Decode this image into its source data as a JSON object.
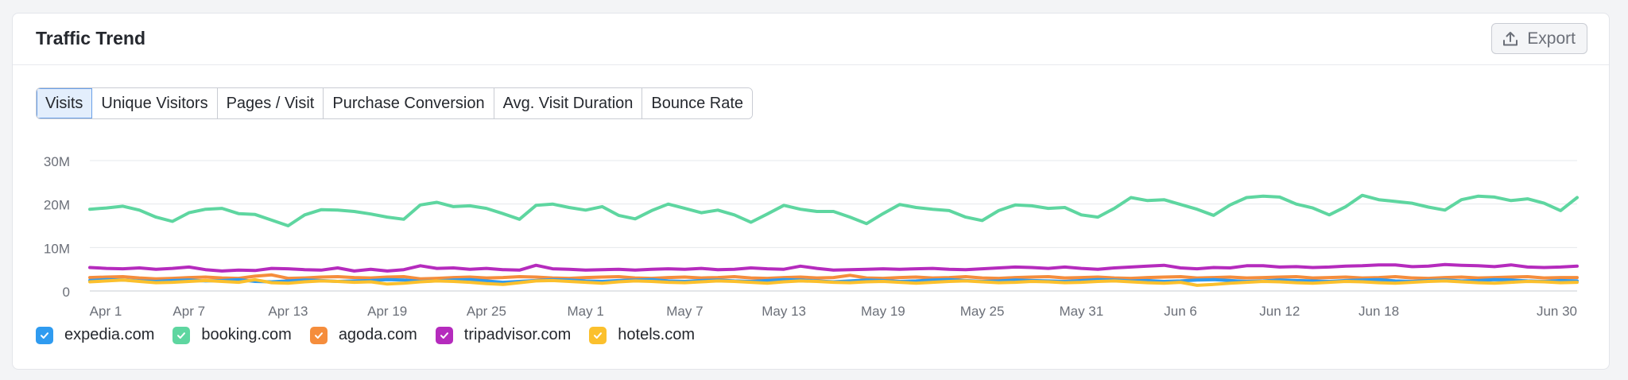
{
  "header": {
    "title": "Traffic Trend",
    "export_label": "Export",
    "export_icon": "upload-icon"
  },
  "tabs": [
    {
      "label": "Visits",
      "active": true
    },
    {
      "label": "Unique Visitors",
      "active": false
    },
    {
      "label": "Pages / Visit",
      "active": false
    },
    {
      "label": "Purchase Conversion",
      "active": false
    },
    {
      "label": "Avg. Visit Duration",
      "active": false
    },
    {
      "label": "Bounce Rate",
      "active": false
    }
  ],
  "chart_data": {
    "type": "line",
    "title": "",
    "xlabel": "",
    "ylabel": "",
    "ylim": [
      0,
      30000000
    ],
    "y_ticks": [
      {
        "value": 0,
        "label": "0"
      },
      {
        "value": 10000000,
        "label": "10M"
      },
      {
        "value": 20000000,
        "label": "20M"
      },
      {
        "value": 30000000,
        "label": "30M"
      }
    ],
    "x_ticks": [
      {
        "index": 0,
        "label": "Apr 1"
      },
      {
        "index": 6,
        "label": "Apr 7"
      },
      {
        "index": 12,
        "label": "Apr 13"
      },
      {
        "index": 18,
        "label": "Apr 19"
      },
      {
        "index": 24,
        "label": "Apr 25"
      },
      {
        "index": 30,
        "label": "May 1"
      },
      {
        "index": 36,
        "label": "May 7"
      },
      {
        "index": 42,
        "label": "May 13"
      },
      {
        "index": 48,
        "label": "May 19"
      },
      {
        "index": 54,
        "label": "May 25"
      },
      {
        "index": 60,
        "label": "May 31"
      },
      {
        "index": 66,
        "label": "Jun 6"
      },
      {
        "index": 72,
        "label": "Jun 12"
      },
      {
        "index": 78,
        "label": "Jun 18"
      },
      {
        "index": 90,
        "label": "Jun 30"
      }
    ],
    "grid": true,
    "legend_position": "bottom-left",
    "series": [
      {
        "name": "expedia.com",
        "color": "#2f9bf0",
        "values": [
          2.4,
          2.6,
          2.5,
          2.3,
          2.2,
          2.4,
          2.5,
          2.3,
          2.4,
          2.6,
          2.2,
          2.1,
          2.3,
          2.5,
          2.4,
          2.2,
          2.3,
          2.4,
          2.6,
          2.5,
          2.2,
          2.3,
          2.5,
          2.6,
          2.3,
          2.0,
          2.2,
          2.4,
          2.6,
          2.5,
          2.3,
          2.2,
          2.4,
          2.5,
          2.6,
          2.3,
          2.2,
          2.4,
          2.5,
          2.3,
          2.2,
          2.4,
          2.6,
          2.5,
          2.3,
          2.1,
          2.3,
          2.5,
          2.4,
          2.2,
          2.3,
          2.5,
          2.6,
          2.4,
          2.2,
          2.3,
          2.5,
          2.4,
          2.3,
          2.2,
          2.4,
          2.6,
          2.5,
          2.3,
          2.4,
          2.2,
          2.3,
          2.5,
          2.6,
          2.4,
          2.2,
          2.3,
          2.5,
          2.4,
          2.3,
          2.2,
          2.4,
          2.5,
          2.6,
          2.3,
          2.2,
          2.4,
          2.5,
          2.3,
          2.4,
          2.6,
          2.5,
          2.3,
          2.2,
          2.4,
          2.3
        ]
      },
      {
        "name": "booking.com",
        "color": "#5ed6a0",
        "values": [
          18.8,
          19.1,
          19.5,
          18.6,
          17.0,
          16.0,
          18.0,
          18.8,
          19.0,
          17.8,
          17.6,
          16.3,
          15.0,
          17.5,
          18.7,
          18.6,
          18.3,
          17.7,
          17.0,
          16.5,
          19.8,
          20.4,
          19.4,
          19.6,
          19.0,
          17.8,
          16.5,
          19.7,
          20.0,
          19.2,
          18.6,
          19.4,
          17.4,
          16.6,
          18.5,
          20.0,
          19.0,
          18.0,
          18.6,
          17.5,
          15.8,
          17.7,
          19.7,
          18.8,
          18.3,
          18.3,
          17.0,
          15.5,
          17.8,
          19.9,
          19.2,
          18.8,
          18.5,
          17.0,
          16.2,
          18.5,
          19.8,
          19.6,
          19.0,
          19.2,
          17.5,
          17.0,
          19.0,
          21.5,
          20.8,
          21.0,
          19.9,
          18.8,
          17.4,
          19.8,
          21.5,
          21.8,
          21.6,
          20.0,
          19.1,
          17.5,
          19.4,
          22.0,
          21.0,
          20.6,
          20.2,
          19.3,
          18.6,
          21.0,
          21.8,
          21.6,
          20.8,
          21.2,
          20.2,
          18.5,
          21.5
        ]
      },
      {
        "name": "agoda.com",
        "color": "#f58d3c",
        "values": [
          3.1,
          3.2,
          3.3,
          3.0,
          2.8,
          2.9,
          3.1,
          3.2,
          3.0,
          2.9,
          3.4,
          3.7,
          2.9,
          3.0,
          3.2,
          3.3,
          3.1,
          3.0,
          3.2,
          3.3,
          2.8,
          2.9,
          3.1,
          3.2,
          3.0,
          3.1,
          3.3,
          3.2,
          3.0,
          2.9,
          3.1,
          3.2,
          3.3,
          3.0,
          2.9,
          3.1,
          3.2,
          3.0,
          3.1,
          3.3,
          3.0,
          2.9,
          3.1,
          3.2,
          3.0,
          3.1,
          3.6,
          3.0,
          2.9,
          3.1,
          3.2,
          3.0,
          3.1,
          3.3,
          3.0,
          2.9,
          3.1,
          3.2,
          3.3,
          3.0,
          3.1,
          3.2,
          3.0,
          2.9,
          3.1,
          3.2,
          3.3,
          3.0,
          3.1,
          3.2,
          3.0,
          3.1,
          3.2,
          3.3,
          3.0,
          3.1,
          3.2,
          3.0,
          3.1,
          3.3,
          3.0,
          2.9,
          3.1,
          3.2,
          3.0,
          3.1,
          3.2,
          3.3,
          3.0,
          3.1,
          3.1
        ]
      },
      {
        "name": "tripadvisor.com",
        "color": "#b52bbd",
        "values": [
          5.4,
          5.2,
          5.1,
          5.3,
          5.0,
          5.2,
          5.5,
          4.9,
          4.6,
          4.8,
          4.7,
          5.2,
          5.1,
          4.9,
          4.8,
          5.3,
          4.6,
          5.0,
          4.6,
          4.9,
          5.8,
          5.2,
          5.3,
          5.0,
          5.2,
          4.9,
          4.8,
          5.9,
          5.1,
          5.0,
          4.8,
          4.9,
          5.0,
          4.8,
          5.0,
          5.1,
          5.0,
          5.2,
          4.9,
          5.0,
          5.3,
          5.1,
          5.0,
          5.7,
          5.2,
          4.8,
          4.9,
          5.0,
          5.1,
          5.0,
          5.1,
          5.2,
          5.0,
          4.9,
          5.1,
          5.3,
          5.5,
          5.4,
          5.2,
          5.5,
          5.2,
          5.0,
          5.3,
          5.5,
          5.7,
          5.9,
          5.3,
          5.1,
          5.4,
          5.3,
          5.8,
          5.8,
          5.5,
          5.6,
          5.4,
          5.5,
          5.7,
          5.8,
          6.0,
          6.0,
          5.6,
          5.7,
          6.1,
          5.9,
          5.8,
          5.6,
          6.0,
          5.5,
          5.4,
          5.5,
          5.7
        ]
      },
      {
        "name": "hotels.com",
        "color": "#fbc02d",
        "values": [
          2.1,
          2.3,
          2.5,
          2.2,
          1.9,
          2.0,
          2.2,
          2.4,
          2.2,
          2.0,
          2.6,
          1.9,
          1.8,
          2.1,
          2.3,
          2.2,
          2.0,
          2.1,
          1.6,
          1.8,
          2.1,
          2.3,
          2.2,
          2.0,
          1.7,
          1.5,
          1.9,
          2.3,
          2.4,
          2.2,
          2.0,
          1.8,
          2.1,
          2.3,
          2.2,
          2.0,
          1.9,
          2.1,
          2.3,
          2.2,
          2.0,
          1.8,
          2.1,
          2.3,
          2.2,
          2.0,
          1.9,
          2.1,
          2.2,
          2.0,
          1.8,
          2.0,
          2.2,
          2.3,
          2.1,
          1.9,
          2.0,
          2.2,
          2.1,
          1.9,
          2.0,
          2.2,
          2.3,
          2.1,
          1.9,
          1.8,
          2.0,
          1.3,
          1.5,
          1.8,
          2.0,
          2.2,
          2.1,
          1.9,
          1.8,
          2.0,
          2.2,
          2.1,
          1.9,
          1.8,
          2.0,
          2.2,
          2.3,
          2.1,
          1.9,
          1.8,
          2.0,
          2.2,
          2.1,
          1.9,
          2.0
        ]
      }
    ],
    "units": "millions"
  }
}
